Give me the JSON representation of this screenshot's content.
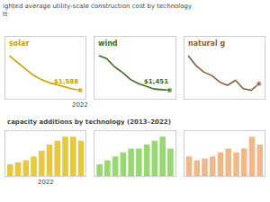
{
  "title": "ighted average utility-scale construction cost by technology\ntt",
  "chart_data": [
    {
      "type": "line",
      "title": "solar",
      "color": "#c8a000",
      "categories": [
        null,
        null,
        null,
        null,
        null,
        null,
        null,
        null,
        null,
        null
      ],
      "values": [
        3200,
        2900,
        2600,
        2300,
        2100,
        1950,
        1850,
        1750,
        1650,
        1588
      ],
      "ylim": [
        1185,
        4086.6
      ],
      "grid": false,
      "tick_labels": false,
      "annotations": [
        {
          "text": "$1,588",
          "value": 1588
        },
        {
          "text": "2022"
        }
      ]
    },
    {
      "type": "line",
      "title": "wind",
      "color": "#3a6e28",
      "categories": [
        null,
        null,
        null,
        null,
        null,
        null,
        null,
        null,
        null,
        null
      ],
      "values": [
        1700,
        1680,
        1620,
        1580,
        1530,
        1500,
        1480,
        1460,
        1455,
        1451
      ],
      "ylim": [
        1388.75,
        1836.95
      ],
      "grid": false,
      "tick_labels": false,
      "annotations": [
        {
          "text": "$1,451",
          "value": 1451
        }
      ]
    },
    {
      "type": "line",
      "title": "natural g",
      "color": "#8b5e3c",
      "categories": [
        null,
        null,
        null,
        null,
        null,
        null,
        null,
        null,
        null,
        null
      ],
      "values": [
        1050,
        1020,
        1000,
        990,
        970,
        960,
        975,
        950,
        945,
        965
      ],
      "ylim": [
        918.75,
        1107.75
      ],
      "grid": false,
      "tick_labels": false
    },
    {
      "type": "bar",
      "subtitle": "capacity additions by technology (2013–2022)",
      "color": "#e8c840",
      "categories": [
        null,
        null,
        null,
        null,
        null,
        null,
        null,
        null,
        null,
        null
      ],
      "values": [
        3,
        3.5,
        4,
        5,
        6.5,
        8,
        9,
        10,
        10,
        9
      ],
      "ylim": [
        0,
        11.5
      ],
      "grid": false,
      "tick_labels": false,
      "annotations": [
        {
          "text": "2022"
        }
      ]
    },
    {
      "type": "bar",
      "color": "#98d870",
      "categories": [
        null,
        null,
        null,
        null,
        null,
        null,
        null,
        null,
        null,
        null
      ],
      "values": [
        3,
        4,
        5,
        6,
        7,
        7,
        8,
        9,
        10,
        7
      ],
      "ylim": [
        0,
        11.5
      ],
      "grid": false,
      "tick_labels": false
    },
    {
      "type": "bar",
      "color": "#f0b888",
      "categories": [
        null,
        null,
        null,
        null,
        null,
        null,
        null,
        null,
        null,
        null
      ],
      "values": [
        5,
        4,
        4.5,
        5,
        6,
        7,
        6,
        7,
        10,
        8
      ],
      "ylim": [
        0,
        11.5
      ],
      "grid": false,
      "tick_labels": false
    }
  ]
}
